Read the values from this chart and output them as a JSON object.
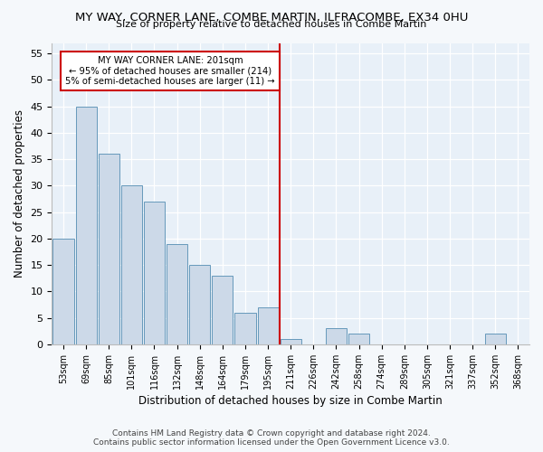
{
  "title": "MY WAY, CORNER LANE, COMBE MARTIN, ILFRACOMBE, EX34 0HU",
  "subtitle": "Size of property relative to detached houses in Combe Martin",
  "xlabel": "Distribution of detached houses by size in Combe Martin",
  "ylabel": "Number of detached properties",
  "categories": [
    "53sqm",
    "69sqm",
    "85sqm",
    "101sqm",
    "116sqm",
    "132sqm",
    "148sqm",
    "164sqm",
    "179sqm",
    "195sqm",
    "211sqm",
    "226sqm",
    "242sqm",
    "258sqm",
    "274sqm",
    "289sqm",
    "305sqm",
    "321sqm",
    "337sqm",
    "352sqm",
    "368sqm"
  ],
  "values": [
    20,
    45,
    36,
    30,
    27,
    19,
    15,
    13,
    6,
    7,
    1,
    0,
    3,
    2,
    0,
    0,
    0,
    0,
    0,
    2,
    0
  ],
  "bar_color": "#ccd9e8",
  "bar_edge_color": "#6699bb",
  "vline_x": 9.5,
  "vline_color": "#cc0000",
  "annotation_text": "MY WAY CORNER LANE: 201sqm\n← 95% of detached houses are smaller (214)\n5% of semi-detached houses are larger (11) →",
  "annotation_box_color": "#cc0000",
  "ylim": [
    0,
    57
  ],
  "yticks": [
    0,
    5,
    10,
    15,
    20,
    25,
    30,
    35,
    40,
    45,
    50,
    55
  ],
  "footer1": "Contains HM Land Registry data © Crown copyright and database right 2024.",
  "footer2": "Contains public sector information licensed under the Open Government Licence v3.0.",
  "bg_color": "#f5f8fb",
  "plot_bg_color": "#e8f0f8"
}
